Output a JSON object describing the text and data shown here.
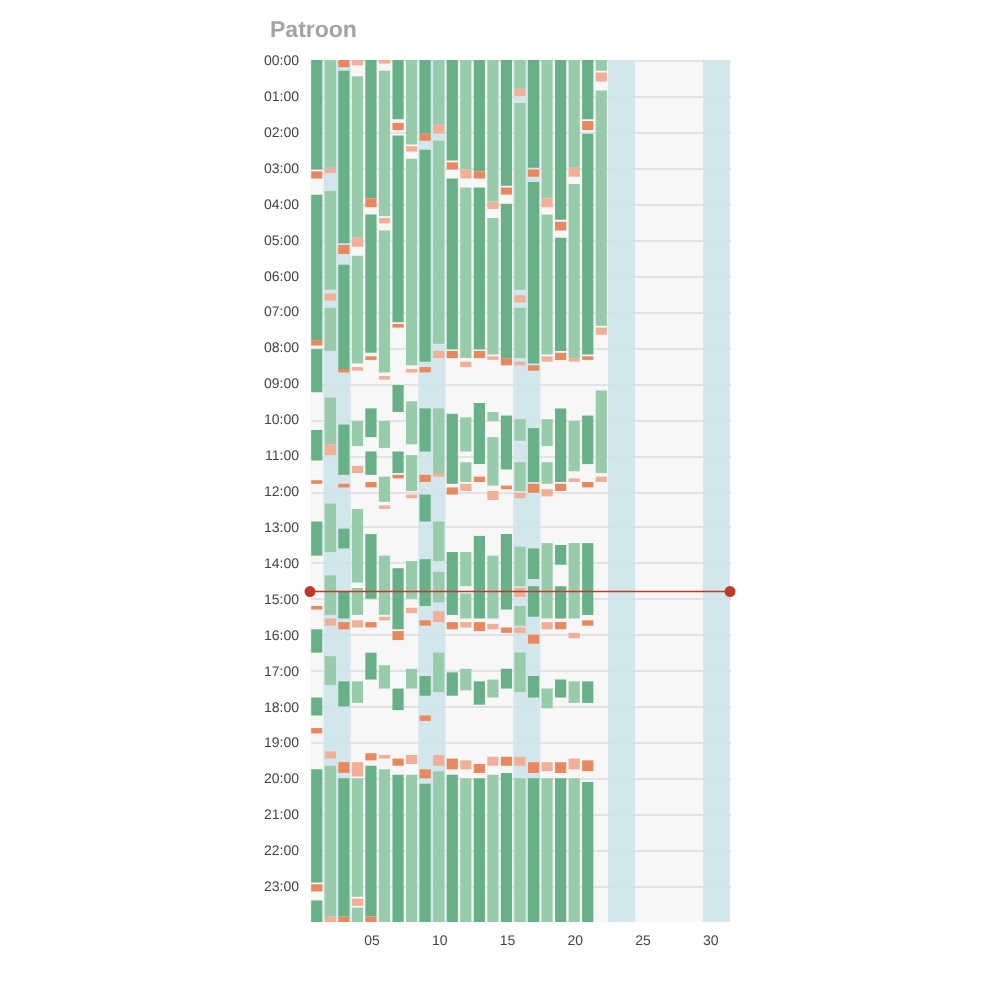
{
  "chart_data": {
    "type": "bar",
    "title": "Patroon",
    "x": [
      1,
      2,
      3,
      4,
      5,
      6,
      7,
      8,
      9,
      10,
      11,
      12,
      13,
      14,
      15,
      16,
      17,
      18,
      19,
      20,
      21,
      22
    ],
    "xlim": [
      0.5,
      31.5
    ],
    "xticks": [
      {
        "value": 5,
        "label": "05"
      },
      10,
      15,
      20,
      25,
      30
    ],
    "ylim": [
      24,
      0
    ],
    "yticks": [
      {
        "value": 0,
        "label": "00:00"
      },
      {
        "value": 1,
        "label": "01:00"
      },
      {
        "value": 2,
        "label": "02:00"
      },
      {
        "value": 3,
        "label": "03:00"
      },
      {
        "value": 4,
        "label": "04:00"
      },
      {
        "value": 5,
        "label": "05:00"
      },
      {
        "value": 6,
        "label": "06:00"
      },
      {
        "value": 7,
        "label": "07:00"
      },
      {
        "value": 8,
        "label": "08:00"
      },
      {
        "value": 9,
        "label": "09:00"
      },
      {
        "value": 10,
        "label": "10:00"
      },
      {
        "value": 11,
        "label": "11:00"
      },
      {
        "value": 12,
        "label": "12:00"
      },
      {
        "value": 13,
        "label": "13:00"
      },
      {
        "value": 14,
        "label": "14:00"
      },
      {
        "value": 15,
        "label": "15:00"
      },
      {
        "value": 16,
        "label": "16:00"
      },
      {
        "value": 17,
        "label": "17:00"
      },
      {
        "value": 18,
        "label": "18:00"
      },
      {
        "value": 19,
        "label": "19:00"
      },
      {
        "value": 20,
        "label": "20:00"
      },
      {
        "value": 21,
        "label": "21:00"
      },
      {
        "value": 22,
        "label": "22:00"
      },
      {
        "value": 23,
        "label": "23:00"
      }
    ],
    "grid": "y",
    "bands": [
      {
        "axis": "x",
        "from": 1.5,
        "to": 3.5,
        "color": "#cde3ea"
      },
      {
        "axis": "x",
        "from": 8.5,
        "to": 10.5,
        "color": "#cde3ea"
      },
      {
        "axis": "x",
        "from": 15.5,
        "to": 17.5,
        "color": "#cde3ea"
      },
      {
        "axis": "x",
        "from": 22.5,
        "to": 24.5,
        "color": "#cde3ea"
      },
      {
        "axis": "x",
        "from": 29.5,
        "to": 31.5,
        "color": "#cde3ea"
      }
    ],
    "ref_lines": [
      {
        "axis": "y",
        "value": 14.8,
        "color": "#c0392b"
      }
    ],
    "series": [
      {
        "colors": [
          "#67b088",
          "#97cba9",
          "#67b088",
          "#97cba9",
          "#67b088",
          "#97cba9",
          "#67b088",
          "#97cba9",
          "#67b088",
          "#97cba9",
          "#67b088",
          "#97cba9",
          "#67b088",
          "#97cba9",
          "#67b088",
          "#97cba9",
          "#67b088",
          "#97cba9",
          "#67b088",
          "#97cba9",
          "#67b088",
          "#97cba9"
        ],
        "base": [
          0,
          0,
          0.3,
          0.45,
          0,
          0.3,
          0,
          0,
          0,
          0,
          0,
          0,
          0,
          0,
          0,
          0,
          0,
          0,
          0,
          0,
          0,
          0
        ],
        "values": [
          3.05,
          3,
          4.8,
          4.5,
          3.85,
          4.05,
          1.65,
          2.35,
          2.05,
          1.8,
          2.8,
          3.05,
          3.1,
          3.95,
          3.5,
          0.8,
          3,
          3.85,
          4.45,
          3,
          1.65,
          0.3
        ]
      },
      {
        "colors": [
          "#67b088",
          "#97cba9",
          "#67b088",
          "#97cba9",
          "#67b088",
          "#97cba9",
          "#67b088",
          "#97cba9",
          "#67b088",
          "#97cba9",
          "#67b088",
          "#97cba9",
          "#67b088",
          "#97cba9",
          "#67b088",
          "#97cba9",
          "#67b088",
          "#97cba9",
          "#67b088",
          "#97cba9",
          "#67b088",
          "#97cba9"
        ],
        "base": [
          3.75,
          3.65,
          5.7,
          5.45,
          4.3,
          4.75,
          2.1,
          2.75,
          2.5,
          2.25,
          3.3,
          3.55,
          3.55,
          4.4,
          4,
          1.2,
          3.4,
          4.3,
          4.95,
          3.45,
          2.05,
          0.85
        ],
        "values": [
          4.05,
          2.75,
          2.9,
          3,
          3.85,
          3.95,
          5.2,
          5.75,
          5.9,
          5.65,
          4.75,
          4.75,
          4.5,
          3.8,
          4.3,
          5.2,
          5.05,
          3.9,
          3.15,
          4.85,
          6.15,
          6.55
        ]
      },
      {
        "colors": [
          "#67b088",
          "#97cba9",
          "#67b088",
          "#97cba9",
          "#67b088",
          "#97cba9",
          "#67b088",
          "#97cba9",
          "#67b088",
          "#97cba9",
          "#67b088",
          "#97cba9",
          "#67b088",
          "#97cba9",
          "#67b088",
          "#97cba9",
          "#67b088",
          "#97cba9",
          "#67b088",
          "#97cba9",
          "#67b088",
          "#97cba9"
        ],
        "base": [
          8.05,
          6.9,
          10.15,
          10.05,
          9.7,
          10.05,
          9.05,
          9.5,
          9.7,
          9.7,
          9.85,
          9.95,
          9.55,
          9.8,
          9.9,
          6.9,
          10.25,
          10,
          9.7,
          10.05,
          9.9,
          9.2
        ],
        "values": [
          1.2,
          1.2,
          1.4,
          0.7,
          0.8,
          0.75,
          0.75,
          1.2,
          1.2,
          1.8,
          1.95,
          0.95,
          1.7,
          0.25,
          1.5,
          1.4,
          1.5,
          0.75,
          2.05,
          1.4,
          1.35,
          2.3
        ]
      },
      {
        "colors": [
          "#67b088",
          "#97cba9",
          "#67b088",
          "#97cba9",
          "#67b088",
          "#97cba9",
          "#67b088",
          "#97cba9",
          "#67b088",
          "#97cba9",
          "#67b088",
          "#97cba9",
          "#67b088",
          "#97cba9",
          "#67b088",
          "#97cba9",
          "#67b088",
          "#97cba9",
          "#67b088",
          "#97cba9",
          "#67b088",
          "#97cba9"
        ],
        "base": [
          10.3,
          9.4,
          13.05,
          12.5,
          10.9,
          11.6,
          10.9,
          11,
          12.1,
          12.85,
          13.7,
          11.2,
          13.25,
          10.5,
          13.2,
          10,
          13.6,
          11.2,
          13.5,
          13.45,
          13.45,
          null
        ],
        "values": [
          0.85,
          1.3,
          0.55,
          2.05,
          0.65,
          0.7,
          0.6,
          1,
          0.75,
          1.1,
          1.75,
          0.55,
          2.3,
          1.35,
          2.1,
          0.6,
          0.85,
          0.6,
          0.55,
          2.1,
          2,
          null
        ]
      },
      {
        "colors": [
          "#67b088",
          "#97cba9",
          "#67b088",
          "#97cba9",
          "#67b088",
          "#97cba9",
          "#67b088",
          "#97cba9",
          "#67b088",
          "#97cba9",
          "#67b088",
          "#97cba9",
          "#67b088",
          "#97cba9",
          "#67b088",
          "#97cba9",
          "#67b088",
          "#97cba9",
          "#67b088",
          "#97cba9",
          "#67b088",
          "#97cba9"
        ],
        "base": [
          12.85,
          12.35,
          14.8,
          14.7,
          13.2,
          13.8,
          14.15,
          13.95,
          13.9,
          14.25,
          17.05,
          13.7,
          17.3,
          13.8,
          16.95,
          11.2,
          14.65,
          13.45,
          14.65,
          17.3,
          17.3,
          null
        ],
        "values": [
          0.95,
          1.35,
          0.75,
          0.75,
          1.8,
          1.65,
          1.7,
          1.05,
          1.3,
          0.85,
          0.65,
          0.95,
          0.65,
          1.75,
          0.55,
          0.8,
          0.85,
          2.1,
          0.9,
          0.6,
          0.6,
          null
        ]
      },
      {
        "colors": [
          "#67b088",
          "#97cba9",
          "#67b088",
          "#97cba9",
          "#67b088",
          "#97cba9",
          "#67b088",
          "#97cba9",
          "#67b088",
          "#97cba9",
          "#67b088",
          "#97cba9",
          "#67b088",
          "#97cba9",
          "#67b088",
          "#97cba9",
          "#67b088",
          "#97cba9",
          "#67b088",
          "#97cba9",
          "#67b088",
          "#97cba9"
        ],
        "base": [
          15.85,
          14.35,
          17.3,
          17.3,
          16.5,
          16.85,
          17.5,
          16.95,
          17.15,
          16.5,
          19.9,
          14.85,
          20,
          17.25,
          19.85,
          13.55,
          17.15,
          17.5,
          17.25,
          20,
          20.1,
          null
        ],
        "values": [
          0.65,
          1.1,
          0.7,
          0.6,
          0.75,
          0.65,
          0.6,
          0.55,
          0.55,
          1.1,
          4.1,
          0.7,
          4,
          0.5,
          4.15,
          1.1,
          0.6,
          0.55,
          0.5,
          4,
          3.9,
          null
        ]
      },
      {
        "colors": [
          "#67b088",
          "#97cba9",
          "#67b088",
          "#97cba9",
          "#67b088",
          "#97cba9",
          "#67b088",
          "#97cba9",
          "#67b088",
          "#97cba9",
          "#67b088",
          "#97cba9",
          "#67b088",
          "#97cba9",
          "#67b088",
          "#97cba9",
          "#67b088",
          "#97cba9",
          "#67b088",
          "#97cba9",
          "#67b088",
          "#97cba9"
        ],
        "base": [
          17.75,
          16.6,
          20,
          20,
          19.65,
          19.75,
          19.9,
          19.9,
          20.15,
          19.8,
          null,
          16.95,
          null,
          19.9,
          null,
          15.2,
          20,
          20,
          20,
          null,
          null,
          null
        ],
        "values": [
          0.5,
          0.8,
          3.85,
          3.3,
          4.2,
          4.25,
          4.1,
          4.1,
          3.85,
          4.2,
          null,
          0.6,
          null,
          4.1,
          null,
          0.55,
          4,
          4,
          4,
          null,
          null,
          null
        ]
      },
      {
        "colors": [
          "#67b088",
          "#97cba9",
          "#67b088",
          "#97cba9",
          "#67b088",
          "#97cba9",
          "#67b088",
          "#97cba9",
          "#67b088",
          "#97cba9",
          "#67b088",
          "#97cba9",
          "#67b088",
          "#97cba9",
          "#67b088",
          "#97cba9",
          "#67b088",
          "#97cba9",
          "#67b088",
          "#97cba9",
          "#67b088",
          "#97cba9"
        ],
        "base": [
          19.75,
          19.65,
          null,
          23.6,
          null,
          null,
          null,
          null,
          null,
          null,
          null,
          20,
          null,
          null,
          null,
          16.5,
          null,
          null,
          null,
          null,
          null,
          null
        ],
        "values": [
          3.15,
          4.2,
          null,
          0.4,
          null,
          null,
          null,
          null,
          null,
          null,
          null,
          4,
          null,
          null,
          null,
          1.1,
          null,
          null,
          null,
          null,
          null,
          null
        ]
      },
      {
        "colors": [
          "#67b088",
          "#97cba9",
          "#67b088",
          "#97cba9",
          "#67b088",
          "#97cba9",
          "#67b088",
          "#97cba9",
          "#67b088",
          "#97cba9",
          "#67b088",
          "#97cba9",
          "#67b088",
          "#97cba9",
          "#67b088",
          "#97cba9",
          "#67b088",
          "#97cba9",
          "#67b088",
          "#97cba9",
          "#67b088",
          "#97cba9"
        ],
        "base": [
          23.4,
          null,
          null,
          null,
          null,
          null,
          null,
          null,
          null,
          null,
          null,
          null,
          null,
          null,
          null,
          20,
          null,
          null,
          null,
          null,
          null,
          null
        ],
        "values": [
          0.6,
          null,
          null,
          null,
          null,
          null,
          null,
          null,
          null,
          null,
          null,
          null,
          null,
          null,
          null,
          4,
          null,
          null,
          null,
          null,
          null,
          null
        ]
      },
      {
        "colors": [
          "#e9875f",
          "#f2ae96",
          "#e9875f",
          "#f2ae96",
          "#e9875f",
          "#f2ae96",
          "#e9875f",
          "#f2ae96",
          "#e9875f",
          "#f2ae96",
          "#e9875f",
          "#f2ae96",
          "#e9875f",
          "#f2ae96",
          "#e9875f",
          "#f2ae96",
          "#e9875f",
          "#f2ae96",
          "#e9875f",
          "#f2ae96",
          "#e9875f",
          "#f2ae96"
        ],
        "base": [
          3.1,
          3,
          0,
          0,
          3.85,
          0,
          1.75,
          2.4,
          2.05,
          1.8,
          2.85,
          3.05,
          3.1,
          3.95,
          3.55,
          0.8,
          3.05,
          3.85,
          4.5,
          3,
          1.7,
          0.35
        ],
        "values": [
          0.2,
          0.15,
          0.2,
          0.15,
          0.25,
          0.1,
          0.2,
          0.15,
          0.2,
          0.25,
          0.2,
          0.25,
          0.2,
          0.2,
          0.2,
          0.2,
          0.2,
          0.25,
          0.25,
          0.25,
          0.25,
          0.25
        ]
      },
      {
        "colors": [
          "#e9875f",
          "#f2ae96",
          "#e9875f",
          "#f2ae96",
          "#e9875f",
          "#f2ae96",
          "#e9875f",
          "#f2ae96",
          "#e9875f",
          "#f2ae96",
          "#e9875f",
          "#f2ae96",
          "#e9875f",
          "#f2ae96",
          "#e9875f",
          "#f2ae96",
          "#e9875f",
          "#f2ae96",
          "#e9875f",
          "#f2ae96",
          "#e9875f",
          "#f2ae96"
        ],
        "base": [
          7.8,
          6.5,
          5.15,
          4.95,
          8.25,
          4.4,
          7.35,
          8.6,
          8.55,
          8.1,
          8.1,
          8.4,
          8.1,
          8.25,
          8.3,
          6.55,
          8.5,
          8.25,
          8.15,
          8.3,
          8.25,
          7.45
        ],
        "values": [
          0.15,
          0.2,
          0.25,
          0.25,
          0.1,
          0.15,
          0.1,
          0.1,
          0.15,
          0.2,
          0.2,
          0.15,
          0.2,
          0.1,
          0.2,
          0.2,
          0.15,
          0.15,
          0.2,
          0.1,
          0.1,
          0.2
        ]
      },
      {
        "colors": [
          "#e9875f",
          "#f2ae96",
          "#e9875f",
          "#f2ae96",
          "#e9875f",
          "#f2ae96",
          "#e9875f",
          "#f2ae96",
          "#e9875f",
          "#f2ae96",
          "#e9875f",
          "#f2ae96",
          "#e9875f",
          "#f2ae96",
          "#e9875f",
          "#f2ae96",
          "#e9875f",
          "#f2ae96",
          "#e9875f",
          "#f2ae96",
          "#e9875f",
          "#f2ae96"
        ],
        "base": [
          11.7,
          10.7,
          8.6,
          8.55,
          11.75,
          8.8,
          11.55,
          12.1,
          11.55,
          11.5,
          11.9,
          11.8,
          11.6,
          12,
          11.85,
          8.4,
          11.8,
          11.95,
          11.8,
          11.65,
          11.75,
          11.6
        ],
        "values": [
          0.1,
          0.3,
          0.1,
          0.1,
          0.15,
          0.1,
          0.1,
          0.1,
          0.2,
          0.1,
          0.2,
          0.2,
          0.15,
          0.25,
          0.1,
          0.1,
          0.25,
          0.2,
          0.2,
          0.1,
          0.15,
          0.15
        ]
      },
      {
        "colors": [
          "#e9875f",
          "#f2ae96",
          "#e9875f",
          "#f2ae96",
          "#e9875f",
          "#f2ae96",
          "#e9875f",
          "#f2ae96",
          "#e9875f",
          "#f2ae96",
          "#e9875f",
          "#f2ae96",
          "#e9875f",
          "#f2ae96",
          "#e9875f",
          "#f2ae96",
          "#e9875f",
          "#f2ae96",
          "#e9875f",
          "#f2ae96",
          "#e9875f",
          "#f2ae96"
        ],
        "base": [
          15.2,
          15.55,
          11.8,
          11.3,
          15.65,
          12.4,
          15.9,
          15.25,
          15.6,
          15.35,
          15.65,
          15.65,
          15.65,
          15.7,
          15.8,
          12.05,
          16,
          15.65,
          15.65,
          15.95,
          15.6,
          null
        ],
        "values": [
          0.1,
          0.2,
          0.1,
          0.2,
          0.15,
          0.1,
          0.25,
          0.15,
          0.15,
          0.3,
          0.2,
          0.15,
          0.25,
          0.15,
          0.15,
          0.15,
          0.25,
          0.2,
          0.2,
          0.15,
          0.15,
          null
        ]
      },
      {
        "colors": [
          "#e9875f",
          "#f2ae96",
          "#e9875f",
          "#f2ae96",
          "#e9875f",
          "#f2ae96",
          "#e9875f",
          "#f2ae96",
          "#e9875f",
          "#f2ae96",
          "#e9875f",
          "#f2ae96",
          "#e9875f",
          "#f2ae96",
          "#e9875f",
          "#f2ae96",
          "#e9875f",
          "#f2ae96",
          "#e9875f",
          "#f2ae96",
          "#e9875f",
          "#f2ae96"
        ],
        "base": [
          18.6,
          19.25,
          15.65,
          15.6,
          19.3,
          15.5,
          19.45,
          19.35,
          18.25,
          19.35,
          19.45,
          19.5,
          19.6,
          19.4,
          19.4,
          14.7,
          19.55,
          19.55,
          19.55,
          19.45,
          19.5,
          null
        ],
        "values": [
          0.15,
          0.2,
          0.2,
          0.2,
          0.2,
          0.1,
          0.2,
          0.25,
          0.15,
          0.3,
          0.3,
          0.25,
          0.25,
          0.25,
          0.25,
          0.25,
          0.3,
          0.25,
          0.3,
          0.3,
          0.3,
          null
        ]
      },
      {
        "colors": [
          "#e9875f",
          "#f2ae96",
          "#e9875f",
          "#f2ae96",
          "#e9875f",
          "#f2ae96",
          "#e9875f",
          "#f2ae96",
          "#e9875f",
          "#f2ae96",
          "#e9875f",
          "#f2ae96",
          "#e9875f",
          "#f2ae96",
          "#e9875f",
          "#f2ae96",
          "#e9875f",
          "#f2ae96",
          "#e9875f",
          "#f2ae96",
          "#e9875f",
          "#f2ae96"
        ],
        "base": [
          22.95,
          23.85,
          19.55,
          19.55,
          23.85,
          19.35,
          null,
          null,
          19.75,
          null,
          null,
          null,
          null,
          null,
          null,
          15.8,
          null,
          null,
          null,
          null,
          null,
          null
        ],
        "values": [
          0.2,
          0.15,
          0.3,
          0.4,
          0.15,
          0.1,
          null,
          null,
          0.25,
          null,
          null,
          null,
          null,
          null,
          null,
          0.15,
          null,
          null,
          null,
          null,
          null,
          null
        ]
      },
      {
        "colors": [
          "#e9875f",
          "#f2ae96",
          "#e9875f",
          "#f2ae96",
          "#e9875f",
          "#f2ae96",
          "#e9875f",
          "#f2ae96",
          "#e9875f",
          "#f2ae96",
          "#e9875f",
          "#f2ae96",
          "#e9875f",
          "#f2ae96",
          "#e9875f",
          "#f2ae96",
          "#e9875f",
          "#f2ae96",
          "#e9875f",
          "#f2ae96",
          "#e9875f",
          "#f2ae96"
        ],
        "base": [
          null,
          null,
          23.85,
          23.35,
          null,
          null,
          null,
          null,
          null,
          null,
          null,
          null,
          null,
          null,
          null,
          19.4,
          null,
          null,
          null,
          null,
          null,
          null
        ],
        "values": [
          null,
          null,
          0.15,
          0.2,
          null,
          null,
          null,
          null,
          null,
          null,
          null,
          null,
          null,
          null,
          null,
          0.25,
          null,
          null,
          null,
          null,
          null,
          null
        ]
      },
      {
        "type": "scatter",
        "color": "#c0392b",
        "marker": "circle",
        "x": [
          0.5,
          31.5
        ],
        "values": [
          14.8,
          14.8
        ]
      }
    ]
  }
}
